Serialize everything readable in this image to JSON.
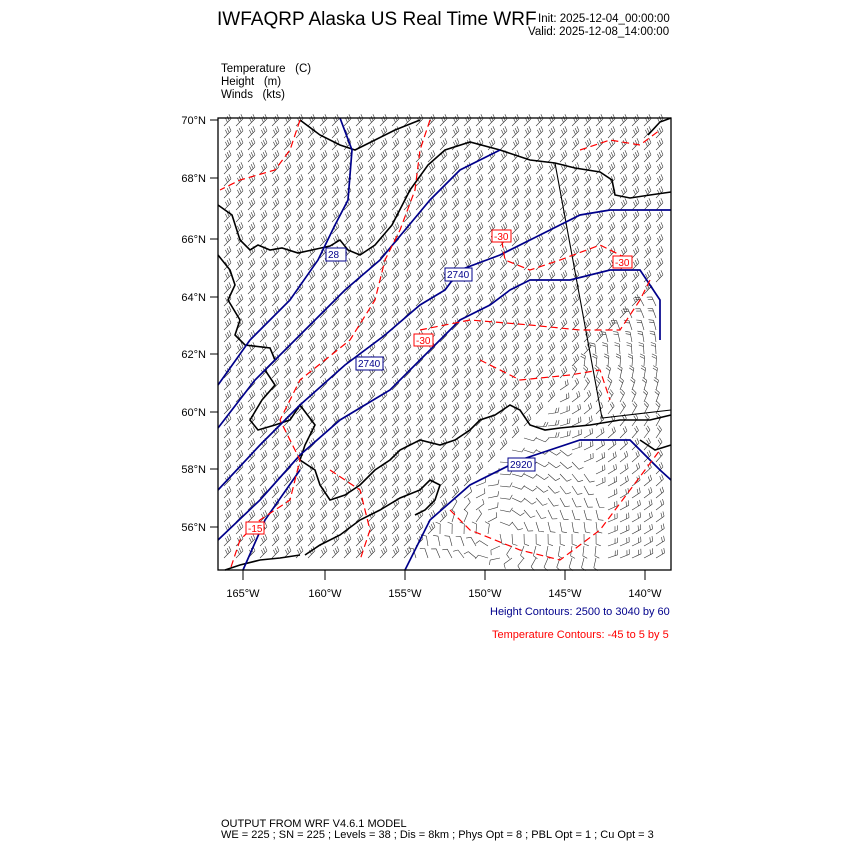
{
  "header": {
    "title": "IWFAQRP Alaska US Real Time WRF",
    "init": "Init: 2025-12-04_00:00:00",
    "valid": "Valid: 2025-12-08_14:00:00"
  },
  "fields": [
    {
      "name": "Temperature",
      "unit": "(C)"
    },
    {
      "name": "Height",
      "unit": "(m)"
    },
    {
      "name": "Winds",
      "unit": "(kts)"
    }
  ],
  "map": {
    "lat_labels": [
      "70°N",
      "68°N",
      "66°N",
      "64°N",
      "62°N",
      "60°N",
      "58°N",
      "56°N"
    ],
    "lon_labels": [
      "165°W",
      "160°W",
      "155°W",
      "150°W",
      "145°W",
      "140°W"
    ],
    "height_contour_labels": [
      "28",
      "2740",
      "2740",
      "2920"
    ],
    "temperature_contour_labels": [
      "-30",
      "-30",
      "-30",
      "-15"
    ],
    "colors": {
      "height": "#00008b",
      "temperature": "#ff0000",
      "coast": "#000000",
      "barbs": "#333333"
    }
  },
  "legend": {
    "height": "Height Contours: 2500 to 3040 by 60",
    "temperature": "Temperature Contours: -45 to 5 by 5"
  },
  "footer": {
    "line1": "OUTPUT FROM WRF V4.6.1 MODEL",
    "line2": "WE = 225 ; SN = 225 ; Levels = 38 ; Dis = 8km ; Phys Opt = 8 ; PBL Opt = 1 ; Cu Opt = 3"
  }
}
